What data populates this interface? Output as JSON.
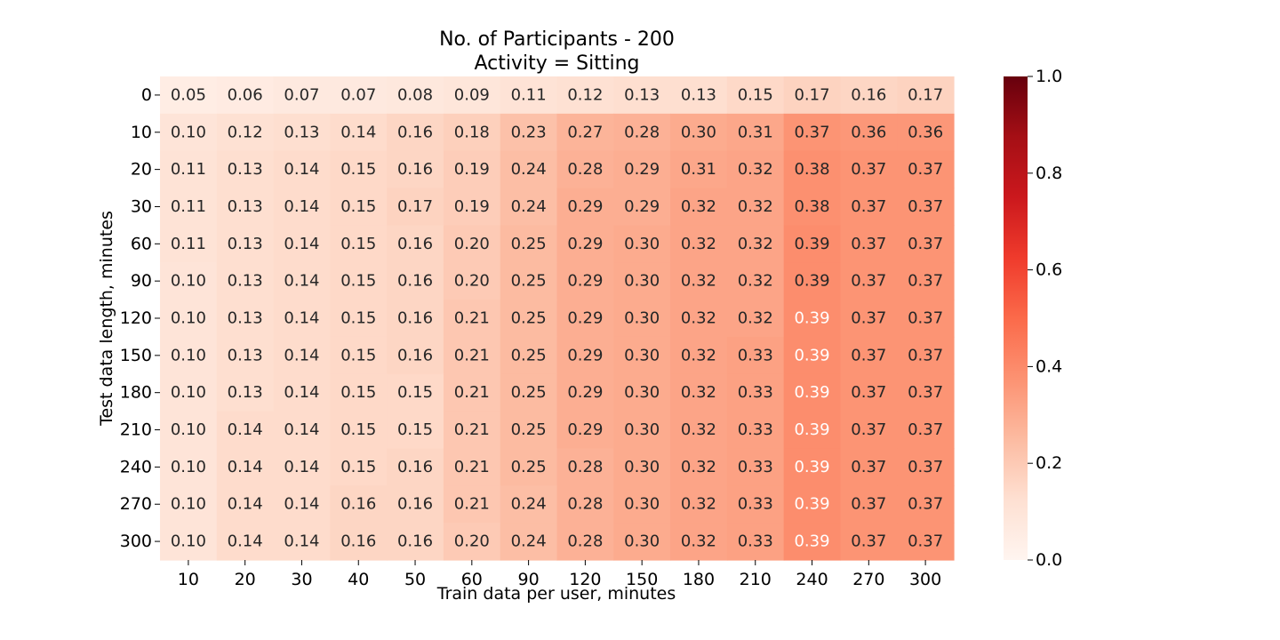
{
  "chart_data": {
    "type": "heatmap",
    "title_lines": [
      "No. of Participants - 200",
      "Activity = Sitting"
    ],
    "xlabel": "Train data per user, minutes",
    "ylabel": "Test data length, minutes",
    "x_categories": [
      "10",
      "20",
      "30",
      "40",
      "50",
      "60",
      "90",
      "120",
      "150",
      "180",
      "210",
      "240",
      "270",
      "300"
    ],
    "y_categories": [
      "0",
      "10",
      "20",
      "30",
      "60",
      "90",
      "120",
      "150",
      "180",
      "210",
      "240",
      "270",
      "300"
    ],
    "values": [
      [
        0.05,
        0.06,
        0.07,
        0.07,
        0.08,
        0.09,
        0.11,
        0.12,
        0.13,
        0.13,
        0.15,
        0.17,
        0.16,
        0.17
      ],
      [
        0.1,
        0.12,
        0.13,
        0.14,
        0.16,
        0.18,
        0.23,
        0.27,
        0.28,
        0.3,
        0.31,
        0.37,
        0.36,
        0.36
      ],
      [
        0.11,
        0.13,
        0.14,
        0.15,
        0.16,
        0.19,
        0.24,
        0.28,
        0.29,
        0.31,
        0.32,
        0.38,
        0.37,
        0.37
      ],
      [
        0.11,
        0.13,
        0.14,
        0.15,
        0.17,
        0.19,
        0.24,
        0.29,
        0.29,
        0.32,
        0.32,
        0.38,
        0.37,
        0.37
      ],
      [
        0.11,
        0.13,
        0.14,
        0.15,
        0.16,
        0.2,
        0.25,
        0.29,
        0.3,
        0.32,
        0.32,
        0.39,
        0.37,
        0.37
      ],
      [
        0.1,
        0.13,
        0.14,
        0.15,
        0.16,
        0.2,
        0.25,
        0.29,
        0.3,
        0.32,
        0.32,
        0.39,
        0.37,
        0.37
      ],
      [
        0.1,
        0.13,
        0.14,
        0.15,
        0.16,
        0.21,
        0.25,
        0.29,
        0.3,
        0.32,
        0.32,
        0.39,
        0.37,
        0.37
      ],
      [
        0.1,
        0.13,
        0.14,
        0.15,
        0.16,
        0.21,
        0.25,
        0.29,
        0.3,
        0.32,
        0.33,
        0.39,
        0.37,
        0.37
      ],
      [
        0.1,
        0.13,
        0.14,
        0.15,
        0.15,
        0.21,
        0.25,
        0.29,
        0.3,
        0.32,
        0.33,
        0.39,
        0.37,
        0.37
      ],
      [
        0.1,
        0.14,
        0.14,
        0.15,
        0.15,
        0.21,
        0.25,
        0.29,
        0.3,
        0.32,
        0.33,
        0.39,
        0.37,
        0.37
      ],
      [
        0.1,
        0.14,
        0.14,
        0.15,
        0.16,
        0.21,
        0.25,
        0.28,
        0.3,
        0.32,
        0.33,
        0.39,
        0.37,
        0.37
      ],
      [
        0.1,
        0.14,
        0.14,
        0.16,
        0.16,
        0.21,
        0.24,
        0.28,
        0.3,
        0.32,
        0.33,
        0.39,
        0.37,
        0.37
      ],
      [
        0.1,
        0.14,
        0.14,
        0.16,
        0.16,
        0.2,
        0.24,
        0.28,
        0.3,
        0.32,
        0.33,
        0.39,
        0.37,
        0.37
      ]
    ],
    "light_text_cells": [
      [
        6,
        11
      ],
      [
        7,
        11
      ],
      [
        8,
        11
      ],
      [
        9,
        11
      ],
      [
        10,
        11
      ],
      [
        11,
        11
      ],
      [
        12,
        11
      ]
    ],
    "value_format": "2 decimals",
    "colormap": "Reds",
    "colormap_stops": [
      "#fff5f0",
      "#fee0d2",
      "#fcbba1",
      "#fc9272",
      "#fb6a4a",
      "#ef3b2c",
      "#cb181d",
      "#a50f15",
      "#67000d"
    ],
    "colorbar": {
      "min": 0.0,
      "max": 1.0,
      "ticks": [
        0.0,
        0.2,
        0.4,
        0.6,
        0.8,
        1.0
      ],
      "tick_labels": [
        "0.0",
        "0.2",
        "0.4",
        "0.6",
        "0.8",
        "1.0"
      ]
    },
    "grid": false,
    "legend": "colorbar on the right"
  }
}
